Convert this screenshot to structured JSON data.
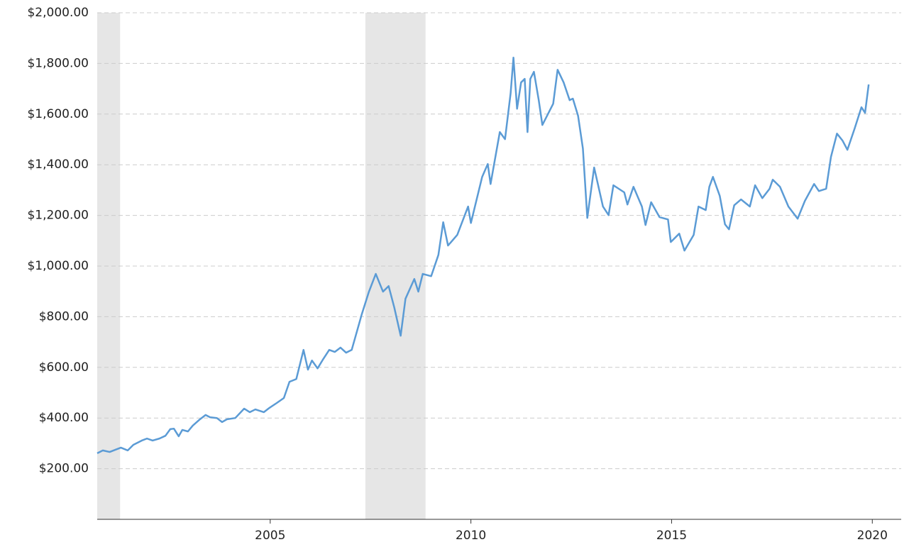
{
  "chart_data": {
    "type": "line",
    "x": [
      2000.69,
      2000.83,
      2001.0,
      2001.13,
      2001.28,
      2001.45,
      2001.59,
      2001.8,
      2001.93,
      2002.07,
      2002.24,
      2002.39,
      2002.51,
      2002.6,
      2002.72,
      2002.81,
      2002.95,
      2003.07,
      2003.25,
      2003.39,
      2003.5,
      2003.67,
      2003.8,
      2003.92,
      2004.13,
      2004.35,
      2004.49,
      2004.63,
      2004.84,
      2004.98,
      2005.16,
      2005.34,
      2005.48,
      2005.65,
      2005.83,
      2005.94,
      2006.04,
      2006.18,
      2006.31,
      2006.47,
      2006.61,
      2006.75,
      2006.89,
      2007.03,
      2007.28,
      2007.46,
      2007.63,
      2007.81,
      2007.95,
      2008.09,
      2008.25,
      2008.37,
      2008.59,
      2008.69,
      2008.8,
      2009.01,
      2009.19,
      2009.31,
      2009.43,
      2009.66,
      2009.93,
      2010.0,
      2010.28,
      2010.42,
      2010.49,
      2010.72,
      2010.85,
      2010.99,
      2011.06,
      2011.15,
      2011.25,
      2011.34,
      2011.41,
      2011.48,
      2011.57,
      2011.69,
      2011.78,
      2012.05,
      2012.16,
      2012.31,
      2012.46,
      2012.54,
      2012.67,
      2012.79,
      2012.9,
      2013.07,
      2013.29,
      2013.43,
      2013.55,
      2013.82,
      2013.9,
      2014.05,
      2014.26,
      2014.35,
      2014.49,
      2014.7,
      2014.91,
      2014.98,
      2015.19,
      2015.32,
      2015.55,
      2015.67,
      2015.85,
      2015.94,
      2016.03,
      2016.2,
      2016.33,
      2016.43,
      2016.56,
      2016.73,
      2016.95,
      2017.08,
      2017.26,
      2017.44,
      2017.52,
      2017.7,
      2017.91,
      2018.14,
      2018.32,
      2018.55,
      2018.67,
      2018.85,
      2018.97,
      2019.12,
      2019.26,
      2019.38,
      2019.56,
      2019.73,
      2019.82,
      2019.91
    ],
    "series": [
      {
        "color": "#5b9bd5",
        "values": [
          261,
          272,
          266,
          274,
          283,
          272,
          294,
          311,
          319,
          311,
          319,
          330,
          356,
          358,
          328,
          353,
          347,
          370,
          395,
          412,
          403,
          400,
          384,
          395,
          400,
          437,
          423,
          434,
          423,
          440,
          459,
          479,
          543,
          554,
          669,
          591,
          627,
          596,
          630,
          669,
          661,
          678,
          658,
          669,
          809,
          899,
          969,
          899,
          921,
          837,
          725,
          871,
          949,
          899,
          969,
          960,
          1044,
          1173,
          1081,
          1123,
          1235,
          1170,
          1352,
          1403,
          1324,
          1529,
          1501,
          1683,
          1823,
          1621,
          1725,
          1739,
          1529,
          1739,
          1767,
          1655,
          1557,
          1641,
          1775,
          1725,
          1655,
          1661,
          1593,
          1464,
          1190,
          1389,
          1235,
          1201,
          1319,
          1291,
          1243,
          1313,
          1235,
          1162,
          1252,
          1193,
          1184,
          1095,
          1128,
          1061,
          1123,
          1235,
          1221,
          1313,
          1352,
          1277,
          1165,
          1145,
          1240,
          1263,
          1235,
          1319,
          1268,
          1305,
          1341,
          1313,
          1235,
          1187,
          1257,
          1324,
          1296,
          1305,
          1431,
          1523,
          1495,
          1459,
          1543,
          1627,
          1605,
          1717
        ]
      }
    ],
    "shaded_regions": [
      [
        2000.69,
        2001.26
      ],
      [
        2007.37,
        2008.87
      ]
    ],
    "shade_color": "#e6e6e6",
    "xlim": [
      2000.69,
      2020.72
    ],
    "xticks": [
      2005,
      2010,
      2015,
      2020
    ],
    "ylim": [
      0,
      2000
    ],
    "yticks": [
      {
        "value": 200,
        "label": "$200.00"
      },
      {
        "value": 400,
        "label": "$400.00"
      },
      {
        "value": 600,
        "label": "$600.00"
      },
      {
        "value": 800,
        "label": "$800.00"
      },
      {
        "value": 1000,
        "label": "$1,000.00"
      },
      {
        "value": 1200,
        "label": "$1,200.00"
      },
      {
        "value": 1400,
        "label": "$1,400.00"
      },
      {
        "value": 1600,
        "label": "$1,600.00"
      },
      {
        "value": 1800,
        "label": "$1,800.00"
      },
      {
        "value": 2000,
        "label": "$2,000.00"
      }
    ],
    "grid": true
  }
}
